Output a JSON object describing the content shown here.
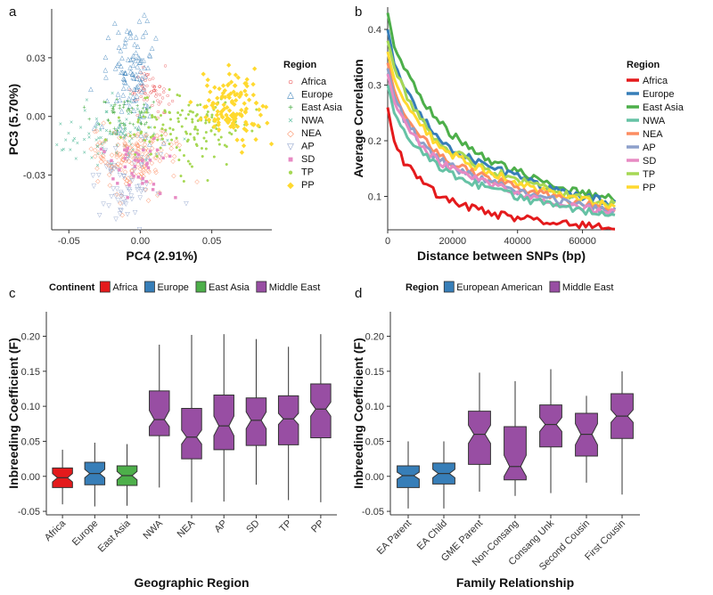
{
  "panels": {
    "a": {
      "label": "a",
      "chart_data": {
        "type": "scatter",
        "xlabel": "PC4 (2.91%)",
        "ylabel": "PC3 (5.70%)",
        "xlim": [
          -0.062,
          0.092
        ],
        "ylim": [
          -0.058,
          0.055
        ],
        "xticks": [
          -0.05,
          0.0,
          0.05
        ],
        "xtick_labels": [
          "-0.05",
          "0.00",
          "0.05"
        ],
        "yticks": [
          -0.03,
          0.0,
          0.03
        ],
        "ytick_labels": [
          "-0.03",
          "0.00",
          "0.03"
        ],
        "legend_title": "Region",
        "legend_position": "right",
        "series": [
          {
            "name": "Africa",
            "marker": "○",
            "color": "#e41a1c",
            "cx": 0.006,
            "cy": 0.014,
            "sx": 0.007,
            "sy": 0.006,
            "n": 60
          },
          {
            "name": "Europe",
            "marker": "△",
            "color": "#377eb8",
            "cx": -0.006,
            "cy": 0.022,
            "sx": 0.009,
            "sy": 0.016,
            "n": 120
          },
          {
            "name": "East Asia",
            "marker": "+",
            "color": "#4daf4a",
            "cx": -0.008,
            "cy": 0.001,
            "sx": 0.011,
            "sy": 0.006,
            "n": 70
          },
          {
            "name": "NWA",
            "marker": "×",
            "color": "#66c2a5",
            "cx": -0.022,
            "cy": -0.01,
            "sx": 0.02,
            "sy": 0.008,
            "n": 90
          },
          {
            "name": "NEA",
            "marker": "◇",
            "color": "#fc8d62",
            "cx": -0.006,
            "cy": -0.022,
            "sx": 0.014,
            "sy": 0.009,
            "n": 160
          },
          {
            "name": "AP",
            "marker": "▽",
            "color": "#8da0cb",
            "cx": -0.012,
            "cy": -0.036,
            "sx": 0.011,
            "sy": 0.009,
            "n": 70
          },
          {
            "name": "SD",
            "marker": "■",
            "color": "#e78ac3",
            "cx": -0.002,
            "cy": -0.026,
            "sx": 0.01,
            "sy": 0.007,
            "n": 40
          },
          {
            "name": "TP",
            "marker": "●",
            "color": "#a6d854",
            "cx": 0.034,
            "cy": -0.006,
            "sx": 0.02,
            "sy": 0.009,
            "n": 140
          },
          {
            "name": "PP",
            "marker": "◆",
            "color": "#ffd92f",
            "cx": 0.064,
            "cy": 0.004,
            "sx": 0.011,
            "sy": 0.009,
            "n": 130
          }
        ]
      }
    },
    "b": {
      "label": "b",
      "chart_data": {
        "type": "line",
        "xlabel": "Distance between SNPs (bp)",
        "ylabel": "Average Correlation",
        "xlim": [
          0,
          70000
        ],
        "ylim": [
          0.04,
          0.44
        ],
        "xticks": [
          0,
          20000,
          40000,
          60000
        ],
        "xtick_labels": [
          "0",
          "20000",
          "40000",
          "60000"
        ],
        "yticks": [
          0.1,
          0.2,
          0.3,
          0.4
        ],
        "ytick_labels": [
          "0.1",
          "0.2",
          "0.3",
          "0.4"
        ],
        "legend_title": "Region",
        "legend_position": "right",
        "x": [
          0,
          2000,
          5000,
          10000,
          15000,
          20000,
          25000,
          30000,
          35000,
          40000,
          45000,
          50000,
          55000,
          60000,
          65000,
          70000
        ],
        "series": [
          {
            "name": "East Asia",
            "color": "#4daf4a",
            "values": [
              0.43,
              0.37,
              0.33,
              0.28,
              0.24,
              0.21,
              0.19,
              0.17,
              0.155,
              0.145,
              0.135,
              0.125,
              0.115,
              0.108,
              0.1,
              0.095
            ]
          },
          {
            "name": "Europe",
            "color": "#377eb8",
            "values": [
              0.4,
              0.34,
              0.3,
              0.25,
              0.21,
              0.185,
              0.17,
              0.155,
              0.145,
              0.135,
              0.125,
              0.115,
              0.108,
              0.1,
              0.094,
              0.088
            ]
          },
          {
            "name": "TP",
            "color": "#a6d854",
            "values": [
              0.38,
              0.33,
              0.29,
              0.24,
              0.2,
              0.18,
              0.165,
              0.15,
              0.14,
              0.13,
              0.12,
              0.112,
              0.104,
              0.097,
              0.09,
              0.085
            ]
          },
          {
            "name": "PP",
            "color": "#ffd92f",
            "values": [
              0.36,
              0.31,
              0.27,
              0.23,
              0.195,
              0.175,
              0.16,
              0.145,
              0.135,
              0.125,
              0.115,
              0.108,
              0.1,
              0.093,
              0.087,
              0.082
            ]
          },
          {
            "name": "NEA",
            "color": "#fc8d62",
            "values": [
              0.34,
              0.29,
              0.25,
              0.21,
              0.18,
              0.16,
              0.147,
              0.135,
              0.125,
              0.116,
              0.108,
              0.1,
              0.093,
              0.087,
              0.081,
              0.077
            ]
          },
          {
            "name": "AP",
            "color": "#8da0cb",
            "values": [
              0.33,
              0.28,
              0.24,
              0.2,
              0.17,
              0.152,
              0.14,
              0.128,
              0.118,
              0.11,
              0.102,
              0.095,
              0.088,
              0.082,
              0.077,
              0.073
            ]
          },
          {
            "name": "SD",
            "color": "#e78ac3",
            "values": [
              0.32,
              0.27,
              0.235,
              0.195,
              0.165,
              0.148,
              0.135,
              0.124,
              0.115,
              0.107,
              0.099,
              0.092,
              0.086,
              0.08,
              0.075,
              0.071
            ]
          },
          {
            "name": "NWA",
            "color": "#66c2a5",
            "values": [
              0.3,
              0.25,
              0.22,
              0.18,
              0.155,
              0.138,
              0.126,
              0.116,
              0.107,
              0.099,
              0.092,
              0.086,
              0.08,
              0.075,
              0.07,
              0.066
            ]
          },
          {
            "name": "Africa",
            "color": "#e41a1c",
            "values": [
              0.26,
              0.2,
              0.16,
              0.13,
              0.105,
              0.09,
              0.08,
              0.072,
              0.066,
              0.061,
              0.057,
              0.053,
              0.05,
              0.048,
              0.046,
              0.044
            ]
          }
        ],
        "legend_order": [
          "Africa",
          "Europe",
          "East Asia",
          "NWA",
          "NEA",
          "AP",
          "SD",
          "TP",
          "PP"
        ]
      }
    },
    "c": {
      "label": "c",
      "chart_data": {
        "type": "box",
        "xlabel": "Geographic Region",
        "ylabel": "Inbreeding Coefficient (F)",
        "ylim": [
          -0.055,
          0.235
        ],
        "yticks": [
          -0.05,
          0.0,
          0.05,
          0.1,
          0.15,
          0.2
        ],
        "ytick_labels": [
          "-0.05",
          "0.00",
          "0.05",
          "0.10",
          "0.15",
          "0.20"
        ],
        "legend_title": "Continent",
        "legend_position": "top",
        "legend": [
          {
            "name": "Africa",
            "color": "#e41a1c"
          },
          {
            "name": "Europe",
            "color": "#377eb8"
          },
          {
            "name": "East Asia",
            "color": "#4daf4a"
          },
          {
            "name": "Middle East",
            "color": "#984ea3"
          }
        ],
        "categories": [
          "Africa",
          "Europe",
          "East Asia",
          "NWA",
          "NEA",
          "AP",
          "SD",
          "TP",
          "PP"
        ],
        "boxes": [
          {
            "category": "Africa",
            "color": "#e41a1c",
            "whislo": -0.04,
            "q1": -0.016,
            "med": -0.002,
            "q3": 0.012,
            "whishi": 0.038,
            "notch_lo": -0.008,
            "notch_hi": 0.004
          },
          {
            "category": "Europe",
            "color": "#377eb8",
            "whislo": -0.043,
            "q1": -0.012,
            "med": 0.004,
            "q3": 0.02,
            "whishi": 0.048,
            "notch_lo": -0.002,
            "notch_hi": 0.01
          },
          {
            "category": "East Asia",
            "color": "#4daf4a",
            "whislo": -0.042,
            "q1": -0.013,
            "med": 0.001,
            "q3": 0.015,
            "whishi": 0.046,
            "notch_lo": -0.005,
            "notch_hi": 0.007
          },
          {
            "category": "NWA",
            "color": "#984ea3",
            "whislo": -0.016,
            "q1": 0.058,
            "med": 0.081,
            "q3": 0.122,
            "whishi": 0.188,
            "notch_lo": 0.071,
            "notch_hi": 0.094
          },
          {
            "category": "NEA",
            "color": "#984ea3",
            "whislo": -0.037,
            "q1": 0.025,
            "med": 0.056,
            "q3": 0.097,
            "whishi": 0.202,
            "notch_lo": 0.046,
            "notch_hi": 0.066
          },
          {
            "category": "AP",
            "color": "#984ea3",
            "whislo": -0.036,
            "q1": 0.038,
            "med": 0.072,
            "q3": 0.116,
            "whishi": 0.203,
            "notch_lo": 0.058,
            "notch_hi": 0.086
          },
          {
            "category": "SD",
            "color": "#984ea3",
            "whislo": -0.012,
            "q1": 0.044,
            "med": 0.08,
            "q3": 0.112,
            "whishi": 0.196,
            "notch_lo": 0.068,
            "notch_hi": 0.092
          },
          {
            "category": "TP",
            "color": "#984ea3",
            "whislo": -0.034,
            "q1": 0.045,
            "med": 0.082,
            "q3": 0.115,
            "whishi": 0.185,
            "notch_lo": 0.074,
            "notch_hi": 0.09
          },
          {
            "category": "PP",
            "color": "#984ea3",
            "whislo": -0.037,
            "q1": 0.055,
            "med": 0.096,
            "q3": 0.132,
            "whishi": 0.203,
            "notch_lo": 0.086,
            "notch_hi": 0.106
          }
        ]
      }
    },
    "d": {
      "label": "d",
      "chart_data": {
        "type": "box",
        "xlabel": "Family Relationship",
        "ylabel": "Inbreeding Coefficient (F)",
        "ylim": [
          -0.055,
          0.235
        ],
        "yticks": [
          -0.05,
          0.0,
          0.05,
          0.1,
          0.15,
          0.2
        ],
        "ytick_labels": [
          "-0.05",
          "0.00",
          "0.05",
          "0.10",
          "0.15",
          "0.20"
        ],
        "legend_title": "Region",
        "legend_position": "top",
        "legend": [
          {
            "name": "European American",
            "color": "#377eb8"
          },
          {
            "name": "Middle East",
            "color": "#984ea3"
          }
        ],
        "categories": [
          "EA Parent",
          "EA Child",
          "GME Parent",
          "Non-Consang",
          "Consang Unk",
          "Second Cousin",
          "First Cousin"
        ],
        "boxes": [
          {
            "category": "EA Parent",
            "color": "#377eb8",
            "whislo": -0.046,
            "q1": -0.016,
            "med": 0.001,
            "q3": 0.015,
            "whishi": 0.05,
            "notch_lo": -0.004,
            "notch_hi": 0.006
          },
          {
            "category": "EA Child",
            "color": "#377eb8",
            "whislo": -0.046,
            "q1": -0.011,
            "med": 0.004,
            "q3": 0.019,
            "whishi": 0.05,
            "notch_lo": -0.002,
            "notch_hi": 0.01
          },
          {
            "category": "GME Parent",
            "color": "#984ea3",
            "whislo": -0.022,
            "q1": 0.017,
            "med": 0.06,
            "q3": 0.093,
            "whishi": 0.148,
            "notch_lo": 0.047,
            "notch_hi": 0.073
          },
          {
            "category": "Non-Consang",
            "color": "#984ea3",
            "whislo": -0.028,
            "q1": -0.005,
            "med": 0.014,
            "q3": 0.071,
            "whishi": 0.136,
            "notch_lo": 0.0,
            "notch_hi": 0.03
          },
          {
            "category": "Consang Unk",
            "color": "#984ea3",
            "whislo": -0.024,
            "q1": 0.042,
            "med": 0.074,
            "q3": 0.102,
            "whishi": 0.153,
            "notch_lo": 0.064,
            "notch_hi": 0.084
          },
          {
            "category": "Second Cousin",
            "color": "#984ea3",
            "whislo": -0.009,
            "q1": 0.029,
            "med": 0.06,
            "q3": 0.09,
            "whishi": 0.115,
            "notch_lo": 0.045,
            "notch_hi": 0.075
          },
          {
            "category": "First Cousin",
            "color": "#984ea3",
            "whislo": -0.026,
            "q1": 0.054,
            "med": 0.086,
            "q3": 0.118,
            "whishi": 0.15,
            "notch_lo": 0.077,
            "notch_hi": 0.095
          }
        ]
      }
    }
  }
}
